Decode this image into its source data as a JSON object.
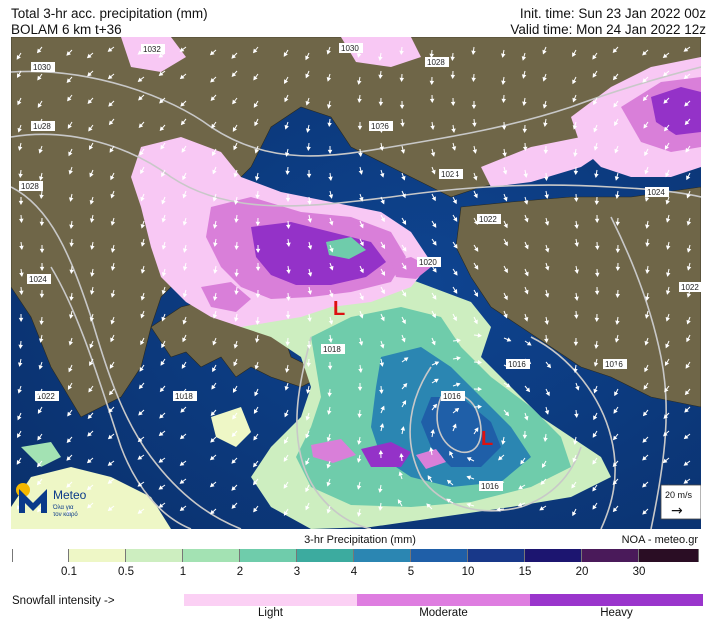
{
  "header": {
    "title": "Total 3-hr acc. precipitation (mm)",
    "model": "BOLAM 6 km t+36",
    "init_time": "Init. time: Sun 23 Jan 2022 00z",
    "valid_time": "Valid time: Mon 24 Jan 2022 12z"
  },
  "map": {
    "isobar_labels": [
      "1030",
      "1032",
      "1030",
      "1028",
      "1028",
      "1026",
      "1028",
      "1024",
      "1022",
      "1024",
      "1020",
      "1022",
      "1024",
      "1018",
      "1022",
      "1018",
      "1016",
      "1016",
      "1016",
      "1016"
    ],
    "low_markers": [
      "L",
      "L"
    ],
    "wind_scale": {
      "label": "20 m/s",
      "arrow": "→"
    },
    "logo": {
      "name": "Meteo",
      "tagline_1": "Όλα για",
      "tagline_2": "τον καιρό"
    },
    "colors": {
      "sea": "#0c3a7a",
      "land": "#6f6648",
      "light_snow": "#f8c8f4",
      "moderate_snow": "#d97fd9",
      "heavy_snow": "#9432c8",
      "low_marker": "#dd1111"
    }
  },
  "colorbar": {
    "title": "3-hr Precipitation (mm)",
    "credit": "NOA - meteo.gr",
    "colors": [
      "#ffffff",
      "#eef7c6",
      "#cdeec0",
      "#a3e2b3",
      "#6fccab",
      "#3cab9f",
      "#2b86b2",
      "#1f5fa8",
      "#183889",
      "#1c1570",
      "#4a1a5a",
      "#2a0d24"
    ],
    "ticks": [
      "0.1",
      "0.5",
      "1",
      "2",
      "3",
      "4",
      "5",
      "10",
      "15",
      "20",
      "30"
    ]
  },
  "snowfall": {
    "label": "Snowfall intensity ->",
    "levels": [
      {
        "name": "Light",
        "color": "#fbd0f4"
      },
      {
        "name": "Moderate",
        "color": "#de7de0"
      },
      {
        "name": "Heavy",
        "color": "#9a35cc"
      }
    ]
  }
}
